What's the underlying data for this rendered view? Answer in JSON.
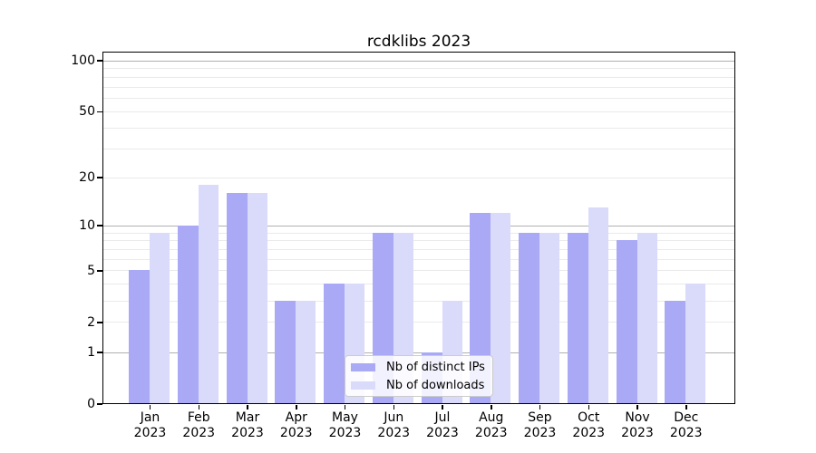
{
  "title": "rcdklibs 2023",
  "chart_data": {
    "type": "bar",
    "title": "rcdklibs 2023",
    "categories": [
      "Jan",
      "Feb",
      "Mar",
      "Apr",
      "May",
      "Jun",
      "Jul",
      "Aug",
      "Sep",
      "Oct",
      "Nov",
      "Dec"
    ],
    "x_tick_year": "2023",
    "series": [
      {
        "name": "Nb of distinct IPs",
        "color": "#a9a9f6",
        "values": [
          5,
          10,
          16,
          3,
          4,
          9,
          1,
          12,
          9,
          9,
          8,
          3
        ]
      },
      {
        "name": "Nb of downloads",
        "color": "#dadafb",
        "values": [
          9,
          18,
          16,
          3,
          4,
          9,
          3,
          12,
          9,
          13,
          9,
          4
        ]
      }
    ],
    "y_axis": {
      "scale": "log10(value+1)",
      "tick_labels": [
        "0",
        "1",
        "2",
        "5",
        "10",
        "20",
        "50",
        "100"
      ],
      "tick_values": [
        0,
        1,
        2,
        5,
        10,
        20,
        50,
        100
      ],
      "major_gridlines": [
        1,
        10,
        100
      ],
      "minor_gridlines": [
        2,
        3,
        4,
        5,
        6,
        7,
        8,
        9,
        20,
        30,
        40,
        50,
        60,
        70,
        80,
        90
      ],
      "range_max": 113
    },
    "legend": {
      "position": "lower center",
      "entries": [
        "Nb of distinct IPs",
        "Nb of downloads"
      ]
    },
    "grid": true
  },
  "colors": {
    "background": "#ffffff",
    "bar_distinct_ips": "#a9a9f6",
    "bar_downloads": "#dadafb",
    "major_gridline": "#b0b0b0",
    "minor_gridline": "#eaeaea",
    "axis_spine": "#000000",
    "legend_border": "#cccccc",
    "text": "#000000"
  }
}
